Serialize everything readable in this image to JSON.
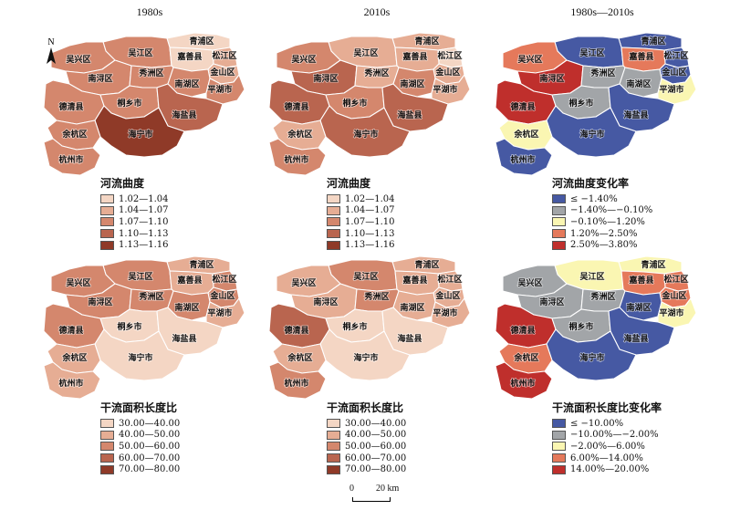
{
  "columns": [
    "1980s",
    "2010s",
    "1980s—2010s"
  ],
  "north_label": "N",
  "place_names": {
    "qingpu": "青浦区",
    "wujiang": "吴江区",
    "songjiang": "松江区",
    "jiashan": "嘉善县",
    "jinshan": "金山区",
    "wuxing": "吴兴区",
    "nanxun": "南浔区",
    "xiuzhou": "秀洲区",
    "nanhu": "南湖区",
    "pinghu": "平湖市",
    "deqing": "德清县",
    "tongxiang": "桐乡市",
    "haiyan": "海盐县",
    "haining": "海宁市",
    "yuhang": "余杭区",
    "hangzhou": "杭州市"
  },
  "legends": {
    "curv": {
      "title": "河流曲度",
      "classes": [
        "1.02—1.04",
        "1.04—1.07",
        "1.07—1.10",
        "1.10—1.13",
        "1.13—1.16"
      ]
    },
    "curv_change": {
      "title": "河流曲度变化率",
      "classes": [
        "≤ −1.40%",
        "−1.40%—−0.10%",
        "−0.10%—1.20%",
        "1.20%—2.50%",
        "2.50%—3.80%"
      ]
    },
    "ratio": {
      "title": "干流面积长度比",
      "classes": [
        "30.00—40.00",
        "40.00—50.00",
        "50.00—60.00",
        "60.00—70.00",
        "70.00—80.00"
      ]
    },
    "ratio_change": {
      "title": "干流面积长度比变化率",
      "classes": [
        "≤ −10.00%",
        "−10.00%—−2.00%",
        "−2.00%—6.00%",
        "6.00%—14.00%",
        "14.00%—20.00%"
      ]
    }
  },
  "colors": {
    "seq": [
      "#f4d6c4",
      "#e6ad94",
      "#d4876d",
      "#b9654f",
      "#8f3a28"
    ],
    "div": [
      "#4659a3",
      "#a2a5a8",
      "#faf6b2",
      "#e5795b",
      "#bf2f2c"
    ]
  },
  "maps": [
    {
      "legend": "curv",
      "scheme": "seq",
      "classes": {
        "qingpu": 0,
        "wujiang": 2,
        "songjiang": 1,
        "jiashan": 0,
        "jinshan": 1,
        "wuxing": 2,
        "nanxun": 2,
        "xiuzhou": 2,
        "nanhu": 2,
        "pinghu": 2,
        "deqing": 2,
        "tongxiang": 2,
        "haiyan": 3,
        "haining": 4,
        "yuhang": 2,
        "hangzhou": 2
      }
    },
    {
      "legend": "curv",
      "scheme": "seq",
      "classes": {
        "qingpu": 1,
        "wujiang": 1,
        "songjiang": 0,
        "jiashan": 1,
        "jinshan": 1,
        "wuxing": 2,
        "nanxun": 3,
        "xiuzhou": 1,
        "nanhu": 2,
        "pinghu": 1,
        "deqing": 3,
        "tongxiang": 2,
        "haiyan": 3,
        "haining": 3,
        "yuhang": 1,
        "hangzhou": 2
      }
    },
    {
      "legend": "curv_change",
      "scheme": "div",
      "classes": {
        "qingpu": 0,
        "wujiang": 0,
        "songjiang": 0,
        "jiashan": 3,
        "jinshan": 0,
        "wuxing": 3,
        "nanxun": 4,
        "xiuzhou": 1,
        "nanhu": 1,
        "pinghu": 2,
        "deqing": 4,
        "tongxiang": 1,
        "haiyan": 0,
        "haining": 0,
        "yuhang": 2,
        "hangzhou": 0
      }
    },
    {
      "legend": "ratio",
      "scheme": "seq",
      "classes": {
        "qingpu": 1,
        "wujiang": 2,
        "songjiang": 2,
        "jiashan": 1,
        "jinshan": 2,
        "wuxing": 2,
        "nanxun": 2,
        "xiuzhou": 2,
        "nanhu": 2,
        "pinghu": 1,
        "deqing": 2,
        "tongxiang": 0,
        "haiyan": 0,
        "haining": 0,
        "yuhang": 1,
        "hangzhou": 1
      }
    },
    {
      "legend": "ratio",
      "scheme": "seq",
      "classes": {
        "qingpu": 1,
        "wujiang": 2,
        "songjiang": 1,
        "jiashan": 1,
        "jinshan": 1,
        "wuxing": 1,
        "nanxun": 1,
        "xiuzhou": 2,
        "nanhu": 1,
        "pinghu": 1,
        "deqing": 3,
        "tongxiang": 0,
        "haiyan": 0,
        "haining": 0,
        "yuhang": 1,
        "hangzhou": 2
      }
    },
    {
      "legend": "ratio_change",
      "scheme": "div",
      "classes": {
        "qingpu": 2,
        "wujiang": 2,
        "songjiang": 3,
        "jiashan": 3,
        "jinshan": 3,
        "wuxing": 1,
        "nanxun": 1,
        "xiuzhou": 1,
        "nanhu": 0,
        "pinghu": 2,
        "deqing": 4,
        "tongxiang": 1,
        "haiyan": 0,
        "haining": 0,
        "yuhang": 3,
        "hangzhou": 4
      }
    }
  ],
  "scale_bar": {
    "zero": "0",
    "length": "20 km"
  }
}
